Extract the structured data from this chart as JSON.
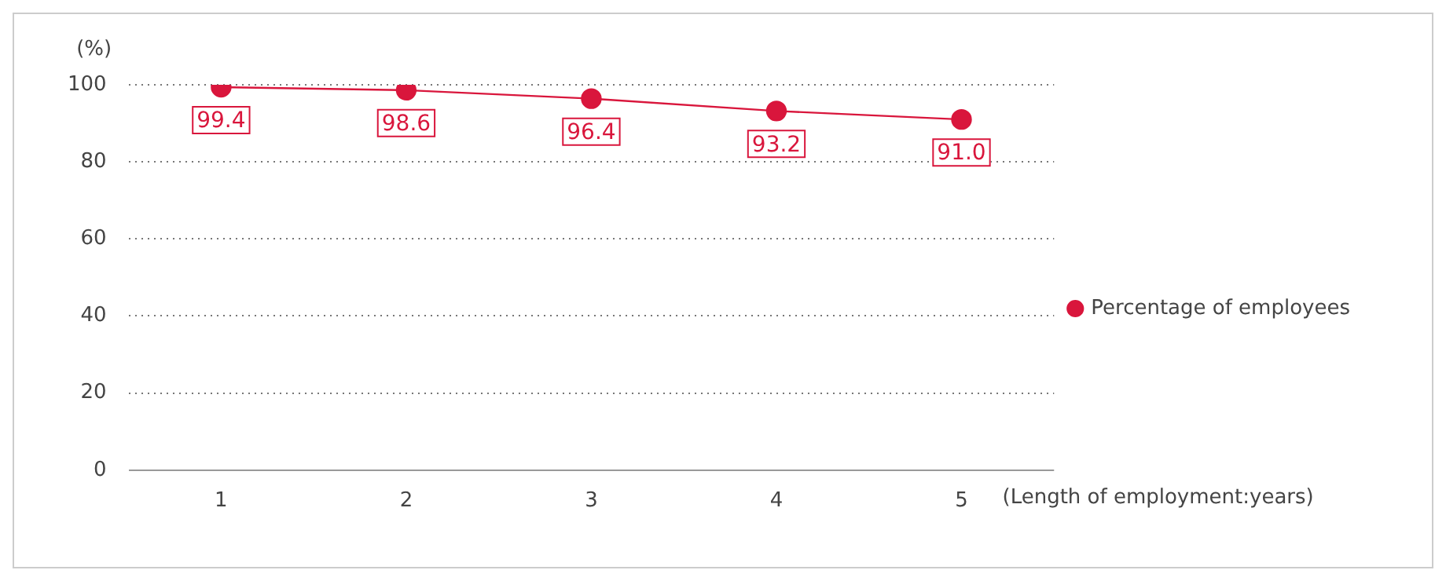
{
  "chart_data": {
    "type": "line",
    "xlabel": "(Length of employment:years)",
    "ylabel": "(%)",
    "categories": [
      "1",
      "2",
      "3",
      "4",
      "5"
    ],
    "series": [
      {
        "name": "Percentage of employees",
        "color": "#d9163c",
        "values": [
          99.4,
          98.6,
          96.4,
          93.2,
          91.0
        ],
        "value_labels": [
          "99.4",
          "98.6",
          "96.4",
          "93.2",
          "91.0"
        ]
      }
    ],
    "ylim": [
      0,
      100
    ],
    "yticks": [
      0,
      20,
      40,
      60,
      80,
      100
    ],
    "grid": "y",
    "legend": "right",
    "marker": "circle",
    "line_style": "solid"
  }
}
